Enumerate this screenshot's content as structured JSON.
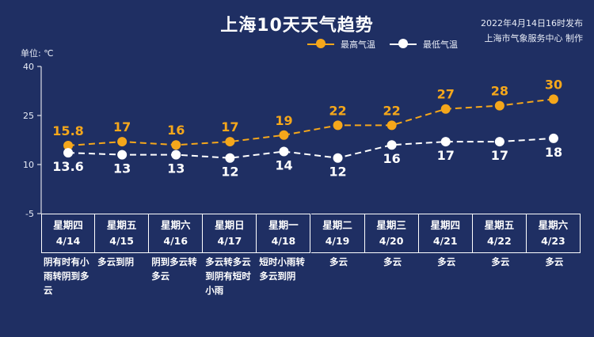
{
  "title": "上海10天天气趋势",
  "publish": {
    "time": "2022年4月14日16时发布",
    "source": "上海市气象服务中心 制作"
  },
  "colors": {
    "background": "#1f2f63",
    "high": "#f5a71b",
    "low": "#ffffff"
  },
  "chart_data": {
    "type": "line",
    "title": "上海10天天气趋势",
    "ylabel": "单位: ℃",
    "ylim": [
      -5,
      40
    ],
    "yticks": [
      40,
      25,
      10,
      -5
    ],
    "grid": false,
    "legend_position": "top-right",
    "categories": [
      "4/14",
      "4/15",
      "4/16",
      "4/17",
      "4/18",
      "4/19",
      "4/20",
      "4/21",
      "4/22",
      "4/23"
    ],
    "series": [
      {
        "name": "最高气温",
        "values": [
          15.8,
          17,
          16,
          17,
          19,
          22,
          22,
          27,
          28,
          30
        ],
        "labels": [
          "15.8",
          "17",
          "16",
          "17",
          "19",
          "22",
          "22",
          "27",
          "28",
          "30"
        ]
      },
      {
        "name": "最低气温",
        "values": [
          13.6,
          13,
          13,
          12,
          14,
          12,
          16,
          17,
          17,
          18
        ],
        "labels": [
          "13.6",
          "13",
          "13",
          "12",
          "14",
          "12",
          "16",
          "17",
          "17",
          "18"
        ]
      }
    ],
    "days": [
      {
        "weekday": "星期四",
        "date": "4/14",
        "weather": "阴有时有小雨转阴到多云",
        "weather_lines": [
          "阴有时有小",
          "雨转阴到多",
          "云"
        ]
      },
      {
        "weekday": "星期五",
        "date": "4/15",
        "weather": "多云到阴",
        "weather_lines": [
          "多云到阴"
        ]
      },
      {
        "weekday": "星期六",
        "date": "4/16",
        "weather": "阴到多云转多云",
        "weather_lines": [
          "阴到多云转",
          "多云"
        ]
      },
      {
        "weekday": "星期日",
        "date": "4/17",
        "weather": "多云转多云到阴有短时小雨",
        "weather_lines": [
          "多云转多云",
          "到阴有短时",
          "小雨"
        ]
      },
      {
        "weekday": "星期一",
        "date": "4/18",
        "weather": "短时小雨转多云到阴",
        "weather_lines": [
          "短时小雨转",
          "多云到阴"
        ]
      },
      {
        "weekday": "星期二",
        "date": "4/19",
        "weather": "多云",
        "weather_lines": [
          "多云"
        ]
      },
      {
        "weekday": "星期三",
        "date": "4/20",
        "weather": "多云",
        "weather_lines": [
          "多云"
        ]
      },
      {
        "weekday": "星期四",
        "date": "4/21",
        "weather": "多云",
        "weather_lines": [
          "多云"
        ]
      },
      {
        "weekday": "星期五",
        "date": "4/22",
        "weather": "多云",
        "weather_lines": [
          "多云"
        ]
      },
      {
        "weekday": "星期六",
        "date": "4/23",
        "weather": "多云",
        "weather_lines": [
          "多云"
        ]
      }
    ]
  }
}
